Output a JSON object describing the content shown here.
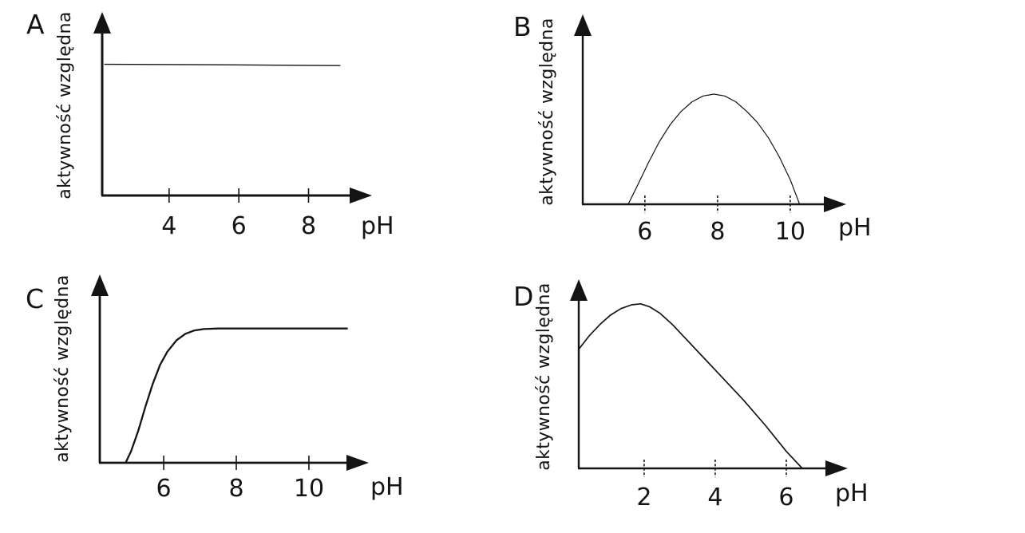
{
  "page": {
    "background": "#ffffff",
    "ink": "#141414"
  },
  "chart_data": [
    {
      "panel_label": "A",
      "type": "line",
      "title": "",
      "xlabel": "pH",
      "ylabel": "aktywność względna",
      "xlim": [
        2.08,
        9.82
      ],
      "ylim": [
        0,
        100
      ],
      "xticks": [
        4,
        6,
        8
      ],
      "yticks": [],
      "grid": false,
      "legend": false,
      "series": [
        {
          "points": [
            [
              2.15,
              71.5
            ],
            [
              5.5,
              71.2
            ],
            [
              8.9,
              70.8
            ]
          ]
        }
      ]
    },
    {
      "panel_label": "B",
      "type": "line",
      "title": "",
      "xlabel": "pH",
      "ylabel": "aktywność względna",
      "xlim": [
        4.29,
        11.54
      ],
      "ylim": [
        0,
        100
      ],
      "xticks": [
        6,
        8,
        10
      ],
      "yticks": [],
      "grid": false,
      "legend": false,
      "series": [
        {
          "points": [
            [
              5.54,
              0
            ],
            [
              5.8,
              10
            ],
            [
              6.1,
              22
            ],
            [
              6.4,
              33
            ],
            [
              6.7,
              42
            ],
            [
              7.0,
              49
            ],
            [
              7.3,
              54
            ],
            [
              7.6,
              57
            ],
            [
              7.9,
              58
            ],
            [
              8.2,
              57
            ],
            [
              8.5,
              54
            ],
            [
              8.8,
              49
            ],
            [
              9.1,
              43
            ],
            [
              9.4,
              35
            ],
            [
              9.7,
              25
            ],
            [
              10.0,
              13
            ],
            [
              10.26,
              0
            ]
          ]
        }
      ]
    },
    {
      "panel_label": "C",
      "type": "line",
      "title": "",
      "xlabel": "pH",
      "ylabel": "aktywność względna",
      "xlim": [
        4.24,
        11.65
      ],
      "ylim": [
        0,
        100
      ],
      "xticks": [
        6,
        8,
        10
      ],
      "yticks": [],
      "grid": false,
      "legend": false,
      "series": [
        {
          "points": [
            [
              4.95,
              0
            ],
            [
              5.1,
              6
            ],
            [
              5.3,
              17
            ],
            [
              5.5,
              30
            ],
            [
              5.7,
              42
            ],
            [
              5.9,
              52
            ],
            [
              6.1,
              59
            ],
            [
              6.35,
              65
            ],
            [
              6.6,
              68.5
            ],
            [
              6.85,
              70.3
            ],
            [
              7.1,
              71
            ],
            [
              7.5,
              71.3
            ],
            [
              11.05,
              71.3
            ]
          ]
        }
      ]
    },
    {
      "panel_label": "D",
      "type": "line",
      "title": "",
      "xlabel": "pH",
      "ylabel": "aktywność względna",
      "xlim": [
        0.16,
        7.73
      ],
      "ylim": [
        0,
        100
      ],
      "xticks": [
        2,
        4,
        6
      ],
      "yticks": [],
      "grid": false,
      "legend": false,
      "series": [
        {
          "points": [
            [
              0.16,
              63
            ],
            [
              0.45,
              70
            ],
            [
              0.75,
              76
            ],
            [
              1.05,
              81
            ],
            [
              1.35,
              84.5
            ],
            [
              1.65,
              86.5
            ],
            [
              1.9,
              87
            ],
            [
              2.15,
              85.5
            ],
            [
              2.45,
              82
            ],
            [
              2.8,
              76
            ],
            [
              3.2,
              68
            ],
            [
              3.7,
              58
            ],
            [
              4.2,
              48
            ],
            [
              4.8,
              36
            ],
            [
              5.4,
              23
            ],
            [
              6.0,
              9
            ],
            [
              6.45,
              0
            ]
          ]
        }
      ]
    }
  ]
}
